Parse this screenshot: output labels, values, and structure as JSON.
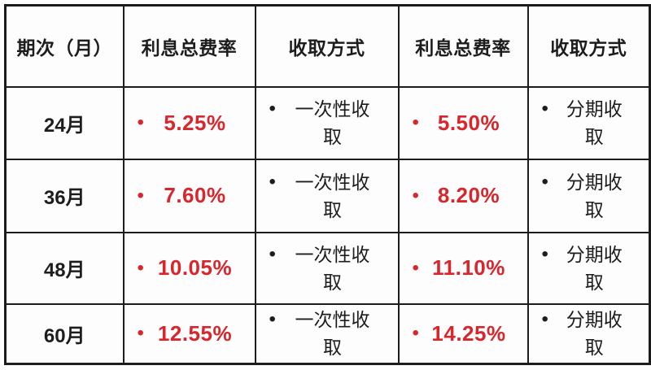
{
  "chart_data": {
    "type": "table",
    "title": "",
    "columns": [
      "期次（月）",
      "利息总费率",
      "收取方式",
      "利息总费率",
      "收取方式"
    ],
    "rows": [
      [
        "24月",
        "5.25%",
        "一次性收取",
        "5.50%",
        "分期收取"
      ],
      [
        "36月",
        "7.60%",
        "一次性收取",
        "8.20%",
        "分期收取"
      ],
      [
        "48月",
        "10.05%",
        "一次性收取",
        "11.10%",
        "分期收取"
      ],
      [
        "60月",
        "12.55%",
        "一次性收取",
        "14.25%",
        "分期收取"
      ]
    ]
  },
  "labels": {
    "method_once_display": "一次性收\n取",
    "method_installment_display": "分期收\n取"
  },
  "icons": {
    "bullet_glyph": "•"
  },
  "colors": {
    "rate_red": "#d8262c",
    "text_black": "#1d1d1d",
    "border_black": "#1c1c1c",
    "background": "#fdfdfd"
  }
}
